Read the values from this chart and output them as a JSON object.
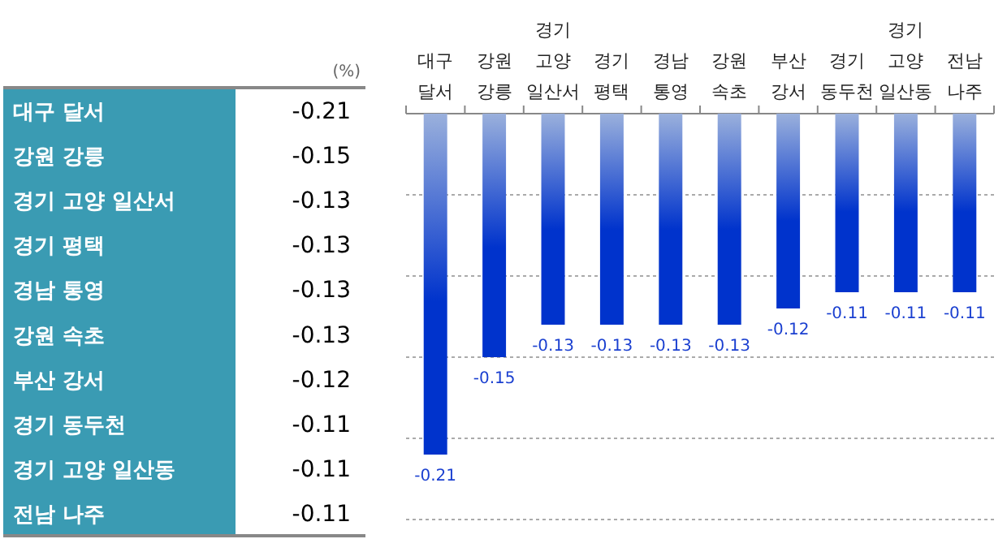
{
  "chart_data": [
    {
      "type": "other",
      "annotations": [
        "(%)"
      ],
      "categories": [
        "대구 달서",
        "강원 강릉",
        "경기 고양 일산서",
        "경기 평택",
        "경남 통영",
        "강원 속초",
        "부산 강서",
        "경기 동두천",
        "경기 고양 일산동",
        "전남 나주"
      ],
      "values": [
        -0.21,
        -0.15,
        -0.13,
        -0.13,
        -0.13,
        -0.13,
        -0.12,
        -0.11,
        -0.11,
        -0.11
      ],
      "data_labels": true
    },
    {
      "type": "bar",
      "categories": [
        "대구 달서",
        "강원 강릉",
        "경기 고양 일산서",
        "경기 평택",
        "경남 통영",
        "강원 속초",
        "부산 강서",
        "경기 동두천",
        "경기 고양 일산동",
        "전남 나주"
      ],
      "values": [
        -0.21,
        -0.15,
        -0.13,
        -0.13,
        -0.13,
        -0.13,
        -0.12,
        -0.11,
        -0.11,
        -0.11
      ],
      "color": "#0033cc",
      "data_labels": true,
      "grid": "y",
      "ylim": [
        -0.25,
        0
      ],
      "yticks": [
        {
          "value": 0,
          "label": null
        },
        {
          "value": -0.05,
          "label": null
        },
        {
          "value": -0.1,
          "label": null
        },
        {
          "value": -0.15,
          "label": null
        },
        {
          "value": -0.2,
          "label": null
        },
        {
          "value": -0.25,
          "label": null
        }
      ]
    }
  ]
}
